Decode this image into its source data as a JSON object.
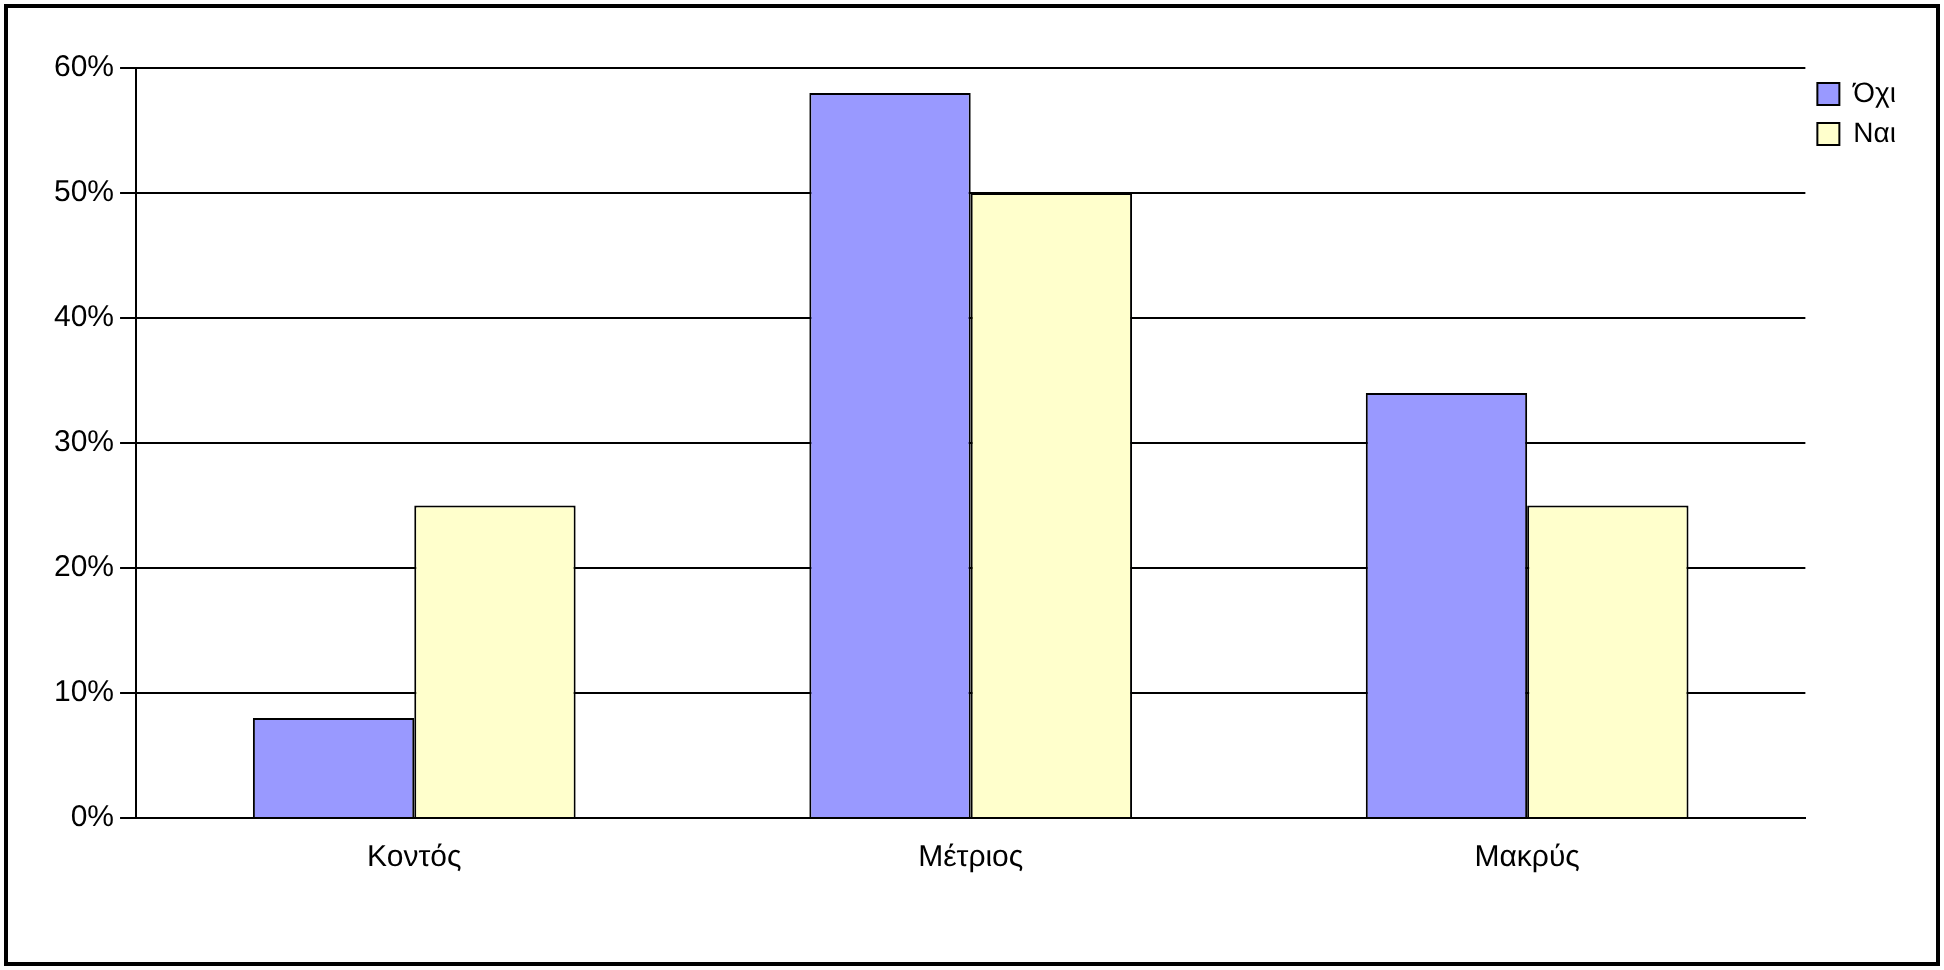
{
  "chart_data": {
    "type": "bar",
    "categories": [
      "Κοντός",
      "Μέτριος",
      "Μακρύς"
    ],
    "series": [
      {
        "name": "Όχι",
        "color": "#9999ff",
        "values": [
          8,
          58,
          34
        ]
      },
      {
        "name": "Ναι",
        "color": "#ffffcc",
        "values": [
          25,
          50,
          25
        ]
      }
    ],
    "ylim": [
      0,
      60
    ],
    "yticks": [
      {
        "value": 0,
        "label": "0%"
      },
      {
        "value": 10,
        "label": "10%"
      },
      {
        "value": 20,
        "label": "20%"
      },
      {
        "value": 30,
        "label": "30%"
      },
      {
        "value": 40,
        "label": "40%"
      },
      {
        "value": 50,
        "label": "50%"
      },
      {
        "value": 60,
        "label": "60%"
      }
    ],
    "grid": "y",
    "legend": "top right"
  }
}
